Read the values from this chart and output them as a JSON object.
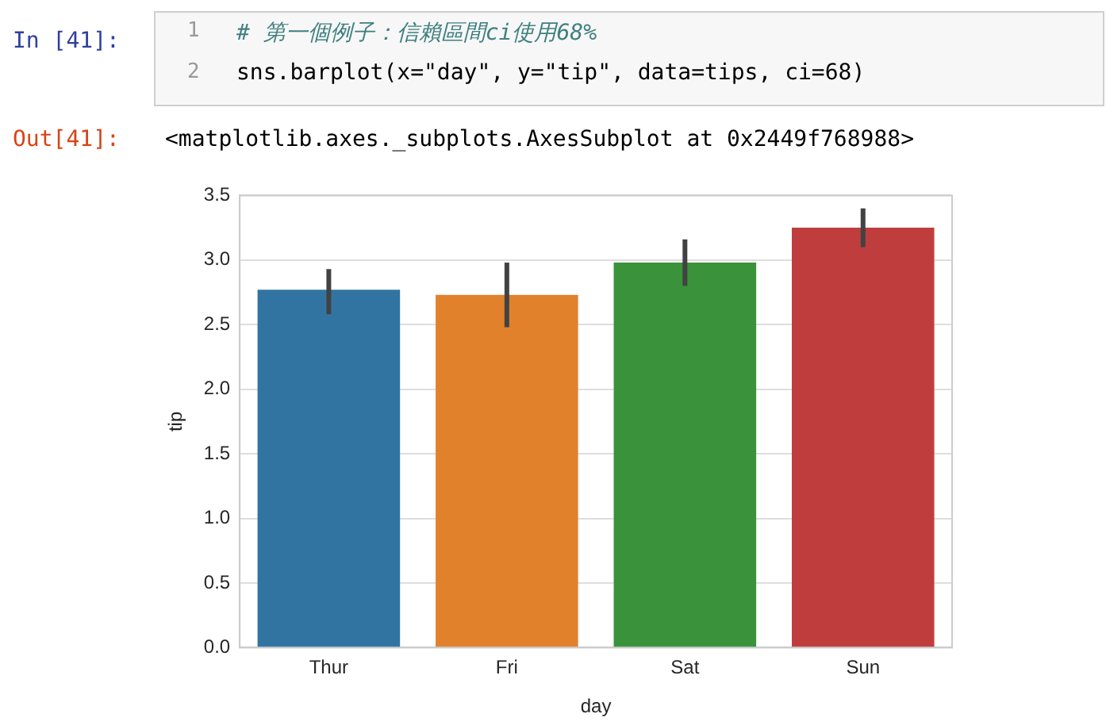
{
  "chart_data": {
    "type": "bar",
    "xlabel": "day",
    "ylabel": "tip",
    "categories": [
      "Thur",
      "Fri",
      "Sat",
      "Sun"
    ],
    "values": [
      2.77,
      2.73,
      2.98,
      3.25
    ],
    "colors": [
      "#3274a1",
      "#e1812c",
      "#3a923a",
      "#c03d3e"
    ],
    "errors": [
      [
        2.58,
        2.93
      ],
      [
        2.48,
        2.98
      ],
      [
        2.8,
        3.16
      ],
      [
        3.1,
        3.4
      ]
    ],
    "ylim": [
      0,
      3.5
    ],
    "yticks": [
      {
        "value": 0,
        "label": "0.0"
      },
      0.5,
      {
        "value": 1,
        "label": "1.0"
      },
      1.5,
      {
        "value": 2,
        "label": "2.0"
      },
      2.5,
      {
        "value": 3,
        "label": "3.0"
      },
      3.5
    ],
    "grid": "y",
    "annotations": [
      "In [41]:",
      "1",
      "2",
      "# 第一個例子：信賴區間ci使用68%",
      "sns.barplot(x=\"day\", y=\"tip\", data=tips, ci=68)",
      "Out[41]:",
      "<matplotlib.axes._subplots.AxesSubplot at 0x2449f768988>"
    ]
  }
}
